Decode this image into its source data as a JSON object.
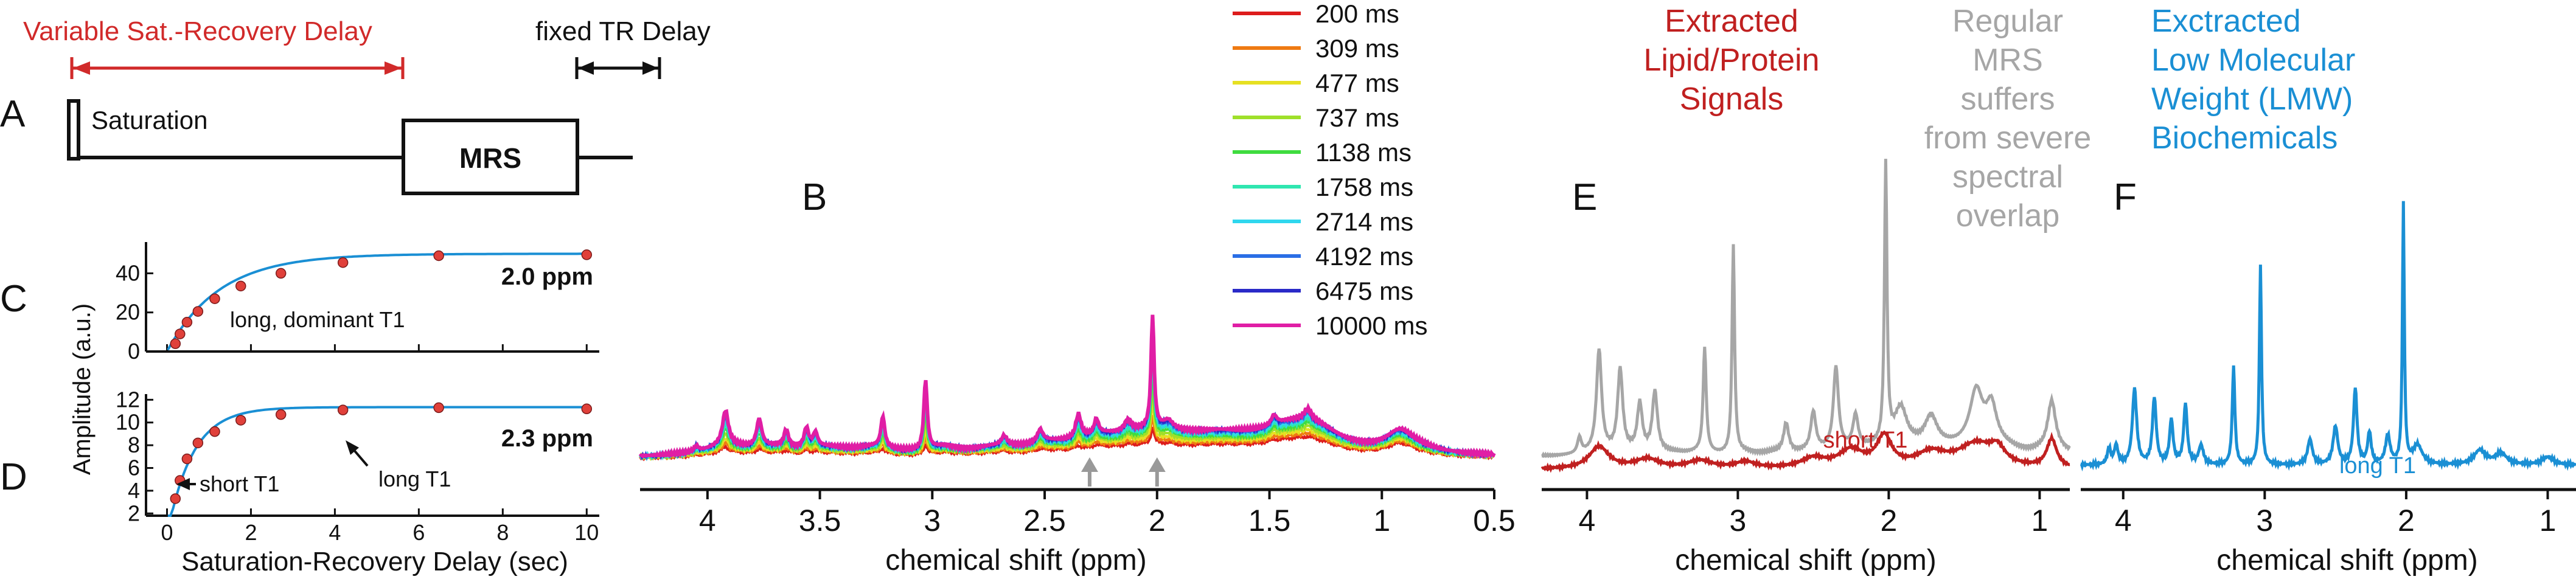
{
  "panels": {
    "A": {
      "letter": "A",
      "variable_delay_label": "Variable Sat.-Recovery Delay",
      "fixed_delay_label": "fixed TR Delay",
      "saturation_label": "Saturation",
      "mrs_label": "MRS"
    },
    "C": {
      "letter": "C",
      "ppm_label": "2.0 ppm",
      "annotation": "long, dominant T1"
    },
    "D": {
      "letter": "D",
      "ppm_label": "2.3 ppm",
      "short_label": "short T1",
      "long_label": "long T1"
    },
    "CD": {
      "ylabel": "Amplitude (a.u.)",
      "xlabel": "Saturation-Recovery Delay (sec)"
    },
    "B": {
      "letter": "B",
      "xlabel": "chemical shift (ppm)"
    },
    "E": {
      "letter": "E",
      "extracted_lines": [
        "Extracted",
        "Lipid/Protein",
        "Signals"
      ],
      "regular_lines": [
        "Regular",
        "MRS",
        "suffers",
        "from severe",
        "spectral",
        "overlap"
      ],
      "annotation": "short T1",
      "xlabel": "chemical shift (ppm)"
    },
    "F": {
      "letter": "F",
      "title_lines": [
        "Exctracted",
        "Low Molecular",
        "Weight (LMW)",
        "Biochemicals"
      ],
      "annotation": "long T1",
      "xlabel": "chemical shift (ppm)"
    }
  },
  "colors": {
    "red": "#d12a2a",
    "gray": "#a6a6a6",
    "blue": "#1a8fd4",
    "point": "#e0403a",
    "fit": "#1a8fd4"
  },
  "chart_data": [
    {
      "id": "C",
      "type": "scatter",
      "title": "2.0 ppm",
      "xlabel": "Saturation-Recovery Delay (sec)",
      "ylabel": "Amplitude (a.u.)",
      "xlim": [
        -0.5,
        10.3
      ],
      "ylim": [
        0,
        56
      ],
      "xticks": [
        0,
        2,
        4,
        6,
        8,
        10
      ],
      "yticks": [
        0,
        20,
        40
      ],
      "x": [
        0.2,
        0.309,
        0.477,
        0.737,
        1.138,
        1.758,
        2.714,
        4.192,
        6.475,
        10.0
      ],
      "y": [
        4,
        9,
        15,
        20.5,
        27,
        33.5,
        40,
        45.5,
        49,
        49.5
      ],
      "fit": {
        "amplitude": 50,
        "t1": 1.25
      }
    },
    {
      "id": "D",
      "type": "scatter",
      "title": "2.3 ppm",
      "xlabel": "Saturation-Recovery Delay (sec)",
      "ylabel": "Amplitude (a.u.)",
      "xlim": [
        -0.5,
        10.3
      ],
      "ylim": [
        1.8,
        12.5
      ],
      "xticks": [
        0,
        2,
        4,
        6,
        8,
        10
      ],
      "yticks": [
        2,
        4,
        6,
        8,
        10,
        12
      ],
      "x": [
        0.2,
        0.309,
        0.477,
        0.737,
        1.138,
        1.758,
        2.714,
        4.192,
        6.475,
        10.0
      ],
      "y": [
        3.3,
        4.9,
        6.8,
        8.2,
        9.2,
        10.2,
        10.7,
        11.1,
        11.3,
        11.2
      ],
      "fit": {
        "amplitude": 11.35,
        "t1": 0.6
      }
    },
    {
      "id": "B",
      "type": "line",
      "xlabel": "chemical shift (ppm)",
      "xlim": [
        4.3,
        0.5
      ],
      "xticks": [
        4,
        3.5,
        3,
        2.5,
        2,
        1.5,
        1,
        0.5
      ],
      "arrows_at_ppm": [
        2.3,
        2.0
      ],
      "series": [
        {
          "name": "200 ms",
          "color": "#dd1c1c",
          "scale": 0.3
        },
        {
          "name": "309 ms",
          "color": "#ef7a12",
          "scale": 0.4
        },
        {
          "name": "477 ms",
          "color": "#e6e022",
          "scale": 0.5
        },
        {
          "name": "737 ms",
          "color": "#9fe02a",
          "scale": 0.6
        },
        {
          "name": "1138 ms",
          "color": "#3fdc3f",
          "scale": 0.7
        },
        {
          "name": "1758 ms",
          "color": "#2fe6b0",
          "scale": 0.78
        },
        {
          "name": "2714 ms",
          "color": "#2fd7ee",
          "scale": 0.85
        },
        {
          "name": "4192 ms",
          "color": "#2a6ee6",
          "scale": 0.91
        },
        {
          "name": "6475 ms",
          "color": "#2a2ac8",
          "scale": 0.96
        },
        {
          "name": "10000 ms",
          "color": "#e01ea5",
          "scale": 1.0
        }
      ]
    },
    {
      "id": "E",
      "type": "line",
      "xlabel": "chemical shift (ppm)",
      "xlim": [
        4.3,
        0.8
      ],
      "xticks": [
        4,
        3,
        2,
        1
      ],
      "series": [
        {
          "name": "Regular MRS",
          "color": "#a6a6a6"
        },
        {
          "name": "Extracted Lipid/Protein Signals",
          "color": "#c02020"
        }
      ]
    },
    {
      "id": "F",
      "type": "line",
      "xlabel": "chemical shift (ppm)",
      "xlim": [
        4.3,
        0.8
      ],
      "xticks": [
        4,
        3,
        2,
        1
      ],
      "series": [
        {
          "name": "Extracted Low Molecular Weight (LMW) Biochemicals",
          "color": "#1a8fd4"
        }
      ]
    }
  ]
}
